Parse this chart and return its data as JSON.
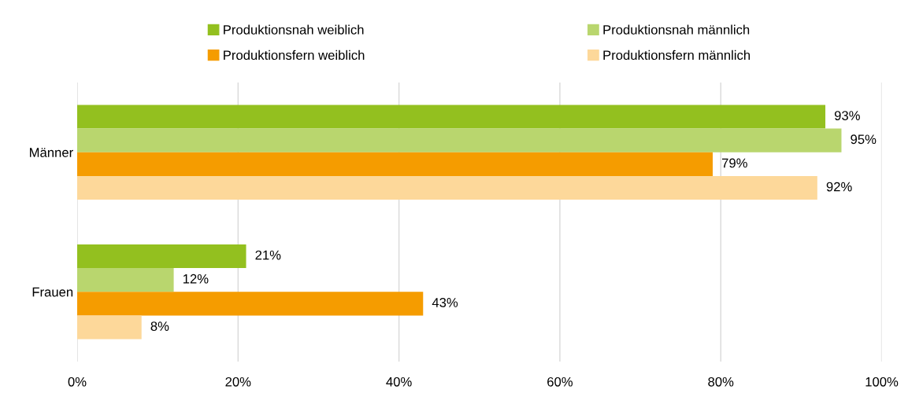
{
  "chart_data": {
    "type": "bar",
    "orientation": "horizontal",
    "categories": [
      "Männer",
      "Frauen"
    ],
    "series": [
      {
        "name": "Produktionsnah weiblich",
        "color": "#93c01f",
        "values": [
          93,
          21
        ],
        "value_labels": [
          "93%",
          "21%"
        ]
      },
      {
        "name": "Produktionsnah männlich",
        "color": "#b9d66e",
        "values": [
          95,
          12
        ],
        "value_labels": [
          "95%",
          "12%"
        ]
      },
      {
        "name": "Produktionsfern weiblich",
        "color": "#f59c00",
        "values": [
          79,
          43
        ],
        "value_labels": [
          "79%",
          "43%"
        ]
      },
      {
        "name": "Produktionsfern männlich",
        "color": "#fdd89a",
        "values": [
          92,
          8
        ],
        "value_labels": [
          "92%",
          "8%"
        ]
      }
    ],
    "xlim": [
      0,
      100
    ],
    "xticks": [
      {
        "value": 0,
        "label": "0%"
      },
      {
        "value": 20,
        "label": "20%"
      },
      {
        "value": 40,
        "label": "40%"
      },
      {
        "value": 60,
        "label": "60%"
      },
      {
        "value": 80,
        "label": "80%"
      },
      {
        "value": 100,
        "label": "100%"
      }
    ],
    "grid": "x",
    "legend": "top"
  }
}
